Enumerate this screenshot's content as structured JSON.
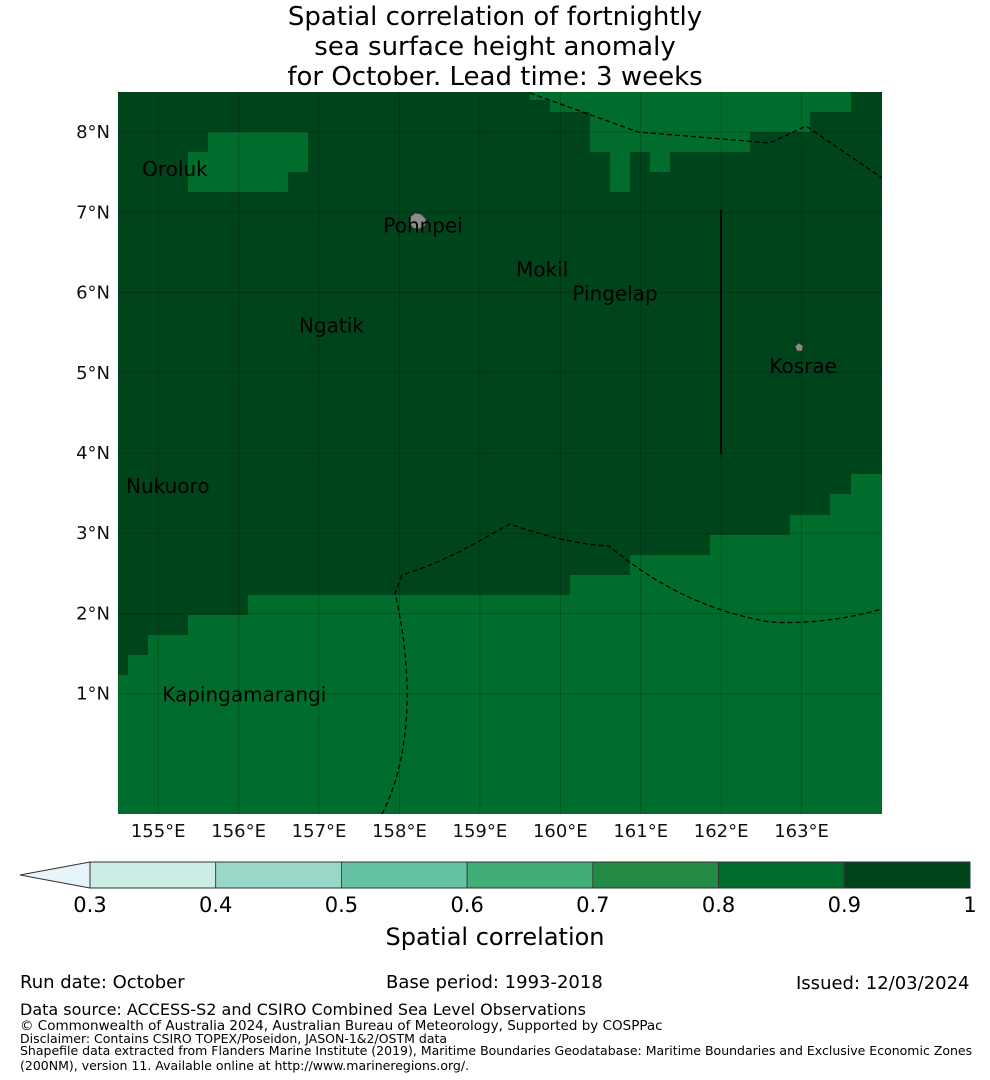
{
  "title": {
    "line1": "Spatial correlation of fortnightly",
    "line2": "sea surface height anomaly",
    "line3": "for October. Lead time: 3 weeks"
  },
  "map": {
    "lon_ticks": [
      "155°E",
      "156°E",
      "157°E",
      "158°E",
      "159°E",
      "160°E",
      "161°E",
      "162°E",
      "163°E"
    ],
    "lat_ticks": [
      "8°N",
      "7°N",
      "6°N",
      "5°N",
      "4°N",
      "3°N",
      "2°N",
      "1°N"
    ],
    "places": [
      {
        "name": "Oroluk",
        "lon": 154.8,
        "lat": 7.55
      },
      {
        "name": "Pohnpei",
        "lon": 157.8,
        "lat": 6.85
      },
      {
        "name": "Mokil",
        "lon": 159.45,
        "lat": 6.3
      },
      {
        "name": "Pingelap",
        "lon": 160.15,
        "lat": 6.0
      },
      {
        "name": "Ngatik",
        "lon": 156.75,
        "lat": 5.6
      },
      {
        "name": "Kosrae",
        "lon": 162.6,
        "lat": 5.1
      },
      {
        "name": "Nukuoro",
        "lon": 154.6,
        "lat": 3.6
      },
      {
        "name": "Kapingamarangi",
        "lon": 155.05,
        "lat": 1.0
      }
    ],
    "colors": {
      "high": "#00441b",
      "mid": "#006d2c",
      "land": "#8c8c8c"
    }
  },
  "colorbar": {
    "ticks": [
      "0.3",
      "0.4",
      "0.5",
      "0.6",
      "0.7",
      "0.8",
      "0.9",
      "1"
    ],
    "colors": [
      "#ccece6",
      "#99d8c9",
      "#66c2a4",
      "#41ae76",
      "#238b45",
      "#006d2c",
      "#00441b"
    ],
    "extend_color": "#e5f5f9",
    "label": "Spatial correlation"
  },
  "footer": {
    "run_date": "Run date: October",
    "base_period": "Base period: 1993-2018",
    "issued": "Issued: 12/03/2024",
    "data_source": "Data source: ACCESS-S2 and CSIRO Combined Sea Level Observations",
    "copyright": "© Commonwealth of Australia 2024, Australian Bureau of Meteorology, Supported by COSPPac",
    "disclaimer": "Disclaimer: Contains CSIRO TOPEX/Poseidon, JASON-1&2/OSTM data",
    "shapefile1": "Shapefile data extracted from Flanders Marine Institute (2019), Maritime Boundaries Geodatabase: Maritime Boundaries and Exclusive Economic Zones",
    "shapefile2": "(200NM), version 11. Available online at http://www.marineregions.org/."
  }
}
